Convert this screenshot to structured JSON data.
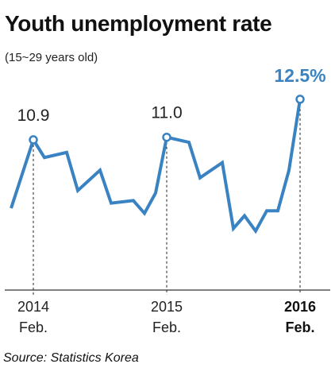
{
  "chart_data": {
    "type": "line",
    "title": "Youth unemployment rate",
    "subtitle": "(15~29 years old)",
    "source": "Source: Statistics Korea",
    "line_color": "#3a83c3",
    "x": [
      "2013-12",
      "2014-02",
      "2014-03",
      "2014-05",
      "2014-06",
      "2014-08",
      "2014-09",
      "2014-11",
      "2014-12",
      "2015-01",
      "2015-02",
      "2015-04",
      "2015-05",
      "2015-07",
      "2015-08",
      "2015-09",
      "2015-10",
      "2015-11",
      "2015-12",
      "2016-01",
      "2016-02"
    ],
    "values": [
      8.2,
      10.9,
      10.2,
      10.4,
      8.9,
      9.7,
      8.4,
      8.5,
      8.0,
      8.8,
      11.0,
      10.8,
      9.4,
      10.0,
      7.4,
      7.9,
      7.3,
      8.1,
      8.1,
      9.7,
      12.5
    ],
    "ylim": [
      5.0,
      13.5
    ],
    "highlights": [
      {
        "index": 1,
        "label": "10.9"
      },
      {
        "index": 10,
        "label": "11.0"
      },
      {
        "index": 20,
        "label": "12.5%"
      }
    ],
    "x_ticks": [
      {
        "index": 1,
        "year": "2014",
        "month": "Feb."
      },
      {
        "index": 10,
        "year": "2015",
        "month": "Feb."
      },
      {
        "index": 20,
        "year": "2016",
        "month": "Feb.",
        "bold": true
      }
    ]
  }
}
